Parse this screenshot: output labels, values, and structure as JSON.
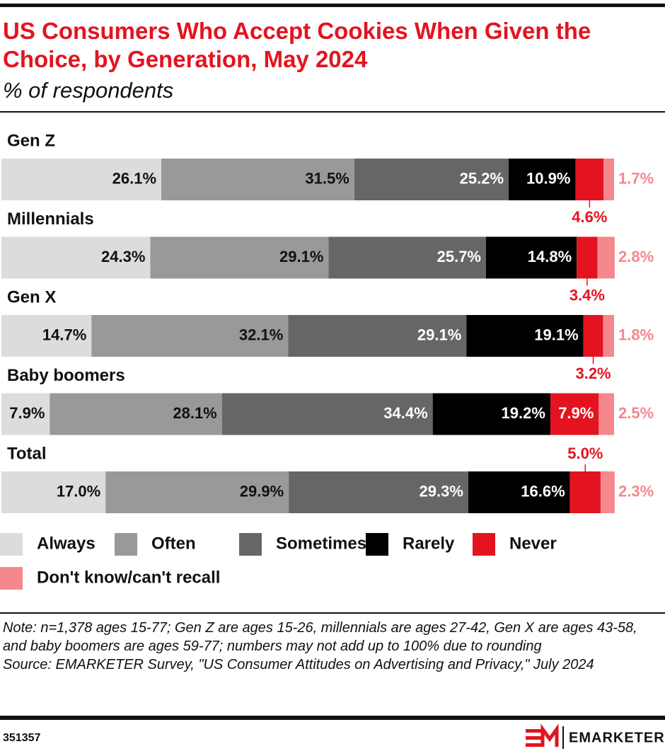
{
  "chart_data": {
    "type": "stacked-bar-horizontal",
    "title": "US Consumers Who Accept Cookies When Given the Choice, by Generation, May 2024",
    "subtitle": "% of respondents",
    "categories": [
      "Gen Z",
      "Millennials",
      "Gen X",
      "Baby boomers",
      "Total"
    ],
    "xlim": [
      0,
      100
    ],
    "series": [
      {
        "name": "Always",
        "color": "#dcdcdc",
        "values": [
          26.1,
          24.3,
          14.7,
          7.9,
          17.0
        ],
        "value_labels": [
          "26.1%",
          "24.3%",
          "14.7%",
          "7.9%",
          "17.0%"
        ]
      },
      {
        "name": "Often",
        "color": "#999999",
        "values": [
          31.5,
          29.1,
          32.1,
          28.1,
          29.9
        ],
        "value_labels": [
          "31.5%",
          "29.1%",
          "32.1%",
          "28.1%",
          "29.9%"
        ]
      },
      {
        "name": "Sometimes",
        "color": "#666666",
        "values": [
          25.2,
          25.7,
          29.1,
          34.4,
          29.3
        ],
        "value_labels": [
          "25.2%",
          "25.7%",
          "29.1%",
          "34.4%",
          "29.3%"
        ]
      },
      {
        "name": "Rarely",
        "color": "#000000",
        "values": [
          10.9,
          14.8,
          19.1,
          19.2,
          16.6
        ],
        "value_labels": [
          "10.9%",
          "14.8%",
          "19.1%",
          "19.2%",
          "16.6%"
        ]
      },
      {
        "name": "Never",
        "color": "#e3141f",
        "values": [
          4.6,
          3.4,
          3.2,
          7.9,
          5.0
        ],
        "value_labels": [
          "4.6%",
          "3.4%",
          "3.2%",
          "7.9%",
          "5.0%"
        ]
      },
      {
        "name": "Don't know/can't recall",
        "color": "#f4888c",
        "values": [
          1.7,
          2.8,
          1.8,
          2.5,
          2.3
        ],
        "value_labels": [
          "1.7%",
          "2.8%",
          "1.8%",
          "2.5%",
          "2.3%"
        ]
      }
    ]
  },
  "note": "Note: n=1,378 ages 15-77; Gen Z are ages 15-26, millennials are ages 27-42, Gen X are ages 43-58, and baby boomers are ages 59-77; numbers may not add up to 100% due to rounding",
  "source": "Source: EMARKETER Survey, \"US Consumer Attitudes on Advertising and Privacy,\" July 2024",
  "chart_id": "351357",
  "brand": "EMARKETER"
}
